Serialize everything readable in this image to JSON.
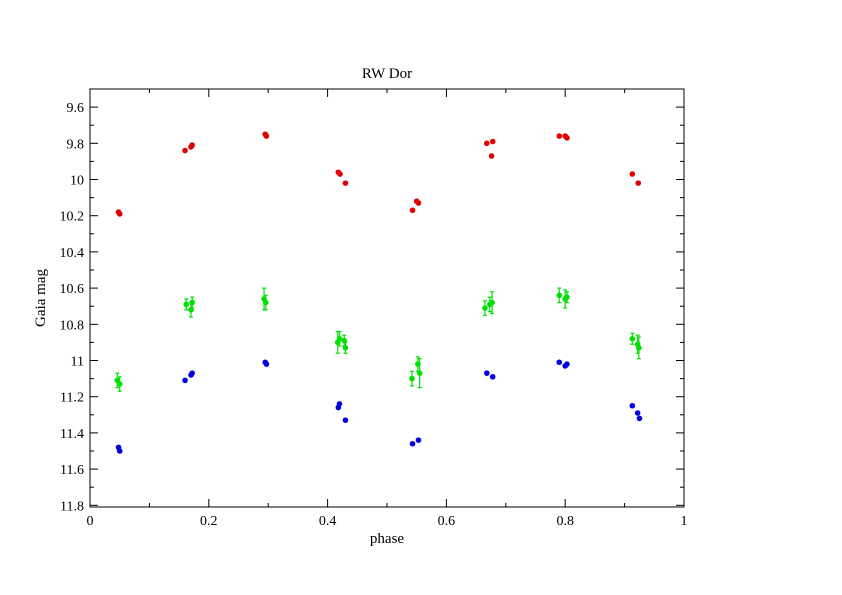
{
  "chart_data": {
    "type": "scatter",
    "title": "RW Dor",
    "xlabel": "phase",
    "ylabel": "Gaia mag",
    "xlim": [
      0,
      1
    ],
    "ylim": [
      9.5,
      11.8
    ],
    "y_inverted": true,
    "grid": false,
    "legend": "none",
    "x_ticks": [
      0,
      0.2,
      0.4,
      0.6,
      0.8,
      1
    ],
    "x_tick_labels": [
      "0",
      "0.2",
      "0.4",
      "0.6",
      "0.8",
      "1"
    ],
    "y_ticks": [
      9.6,
      9.8,
      10,
      10.2,
      10.4,
      10.6,
      10.8,
      11,
      11.2,
      11.4,
      11.6,
      11.8
    ],
    "y_tick_labels": [
      "9.6",
      "9.8",
      "10",
      "10.2",
      "10.4",
      "10.6",
      "10.8",
      "11",
      "11.2",
      "11.4",
      "11.6",
      "11.8"
    ],
    "series": [
      {
        "color": "#e00000",
        "points": [
          {
            "x": 0.048,
            "y": 10.18,
            "err": 0.008
          },
          {
            "x": 0.05,
            "y": 10.19,
            "err": 0.008
          },
          {
            "x": 0.16,
            "y": 9.84,
            "err": 0.008
          },
          {
            "x": 0.17,
            "y": 9.82,
            "err": 0.008
          },
          {
            "x": 0.172,
            "y": 9.81,
            "err": 0.008
          },
          {
            "x": 0.295,
            "y": 9.75,
            "err": 0.008
          },
          {
            "x": 0.297,
            "y": 9.76,
            "err": 0.008
          },
          {
            "x": 0.418,
            "y": 9.96,
            "err": 0.008
          },
          {
            "x": 0.421,
            "y": 9.97,
            "err": 0.008
          },
          {
            "x": 0.43,
            "y": 10.02,
            "err": 0.008
          },
          {
            "x": 0.543,
            "y": 10.17,
            "err": 0.008
          },
          {
            "x": 0.55,
            "y": 10.12,
            "err": 0.008
          },
          {
            "x": 0.553,
            "y": 10.13,
            "err": 0.008
          },
          {
            "x": 0.668,
            "y": 9.8,
            "err": 0.008
          },
          {
            "x": 0.676,
            "y": 9.87,
            "err": 0.008
          },
          {
            "x": 0.678,
            "y": 9.79,
            "err": 0.008
          },
          {
            "x": 0.79,
            "y": 9.76,
            "err": 0.008
          },
          {
            "x": 0.8,
            "y": 9.76,
            "err": 0.008
          },
          {
            "x": 0.803,
            "y": 9.77,
            "err": 0.008
          },
          {
            "x": 0.913,
            "y": 9.97,
            "err": 0.008
          },
          {
            "x": 0.923,
            "y": 10.02,
            "err": 0.008
          }
        ]
      },
      {
        "color": "#00e000",
        "points": [
          {
            "x": 0.046,
            "y": 11.11,
            "err": 0.04
          },
          {
            "x": 0.05,
            "y": 11.13,
            "err": 0.04
          },
          {
            "x": 0.162,
            "y": 10.69,
            "err": 0.03
          },
          {
            "x": 0.17,
            "y": 10.72,
            "err": 0.04
          },
          {
            "x": 0.172,
            "y": 10.68,
            "err": 0.03
          },
          {
            "x": 0.293,
            "y": 10.66,
            "err": 0.06
          },
          {
            "x": 0.296,
            "y": 10.68,
            "err": 0.04
          },
          {
            "x": 0.417,
            "y": 10.9,
            "err": 0.06
          },
          {
            "x": 0.42,
            "y": 10.88,
            "err": 0.04
          },
          {
            "x": 0.428,
            "y": 10.89,
            "err": 0.03
          },
          {
            "x": 0.43,
            "y": 10.93,
            "err": 0.03
          },
          {
            "x": 0.542,
            "y": 11.1,
            "err": 0.04
          },
          {
            "x": 0.552,
            "y": 11.02,
            "err": 0.04
          },
          {
            "x": 0.555,
            "y": 11.07,
            "err": 0.08
          },
          {
            "x": 0.665,
            "y": 10.71,
            "err": 0.04
          },
          {
            "x": 0.673,
            "y": 10.69,
            "err": 0.04
          },
          {
            "x": 0.677,
            "y": 10.68,
            "err": 0.06
          },
          {
            "x": 0.79,
            "y": 10.64,
            "err": 0.04
          },
          {
            "x": 0.8,
            "y": 10.66,
            "err": 0.05
          },
          {
            "x": 0.803,
            "y": 10.65,
            "err": 0.03
          },
          {
            "x": 0.913,
            "y": 10.88,
            "err": 0.03
          },
          {
            "x": 0.922,
            "y": 10.91,
            "err": 0.05
          },
          {
            "x": 0.924,
            "y": 10.93,
            "err": 0.06
          }
        ]
      },
      {
        "color": "#0000e0",
        "points": [
          {
            "x": 0.048,
            "y": 11.48,
            "err": 0.008
          },
          {
            "x": 0.05,
            "y": 11.5,
            "err": 0.008
          },
          {
            "x": 0.16,
            "y": 11.11,
            "err": 0.008
          },
          {
            "x": 0.17,
            "y": 11.08,
            "err": 0.008
          },
          {
            "x": 0.172,
            "y": 11.07,
            "err": 0.008
          },
          {
            "x": 0.295,
            "y": 11.01,
            "err": 0.008
          },
          {
            "x": 0.297,
            "y": 11.02,
            "err": 0.008
          },
          {
            "x": 0.418,
            "y": 11.26,
            "err": 0.008
          },
          {
            "x": 0.42,
            "y": 11.24,
            "err": 0.008
          },
          {
            "x": 0.43,
            "y": 11.33,
            "err": 0.008
          },
          {
            "x": 0.543,
            "y": 11.46,
            "err": 0.008
          },
          {
            "x": 0.553,
            "y": 11.44,
            "err": 0.008
          },
          {
            "x": 0.668,
            "y": 11.07,
            "err": 0.008
          },
          {
            "x": 0.678,
            "y": 11.09,
            "err": 0.008
          },
          {
            "x": 0.79,
            "y": 11.01,
            "err": 0.008
          },
          {
            "x": 0.8,
            "y": 11.03,
            "err": 0.008
          },
          {
            "x": 0.803,
            "y": 11.02,
            "err": 0.008
          },
          {
            "x": 0.913,
            "y": 11.25,
            "err": 0.008
          },
          {
            "x": 0.922,
            "y": 11.29,
            "err": 0.008
          },
          {
            "x": 0.925,
            "y": 11.32,
            "err": 0.008
          }
        ]
      }
    ]
  }
}
